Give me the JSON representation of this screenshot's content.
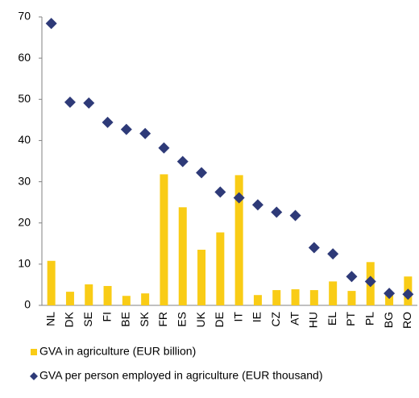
{
  "chart_data": {
    "type": "bar",
    "categories": [
      "NL",
      "DK",
      "SE",
      "FI",
      "BE",
      "SK",
      "FR",
      "ES",
      "UK",
      "DE",
      "IT",
      "IE",
      "CZ",
      "AT",
      "HU",
      "EL",
      "PT",
      "PL",
      "BG",
      "RO"
    ],
    "series": [
      {
        "name": "GVA in agriculture (EUR billion)",
        "type": "bar",
        "color": "#f9cc16",
        "values": [
          10.8,
          3.3,
          5.1,
          4.7,
          2.3,
          2.9,
          31.8,
          23.8,
          13.5,
          17.7,
          31.6,
          2.5,
          3.7,
          3.9,
          3.7,
          5.8,
          3.5,
          10.5,
          2.5,
          7.0
        ]
      },
      {
        "name": "GVA per person employed in agriculture (EUR thousand)",
        "type": "scatter",
        "marker": "diamond",
        "color": "#2e3a78",
        "values": [
          68.4,
          49.3,
          49.1,
          44.4,
          42.7,
          41.7,
          38.2,
          34.9,
          32.2,
          27.5,
          26.1,
          24.4,
          22.6,
          21.8,
          14.0,
          12.5,
          7.0,
          5.8,
          2.9,
          2.7
        ]
      }
    ],
    "ylim": [
      0,
      70
    ],
    "yticks": [
      0,
      10,
      20,
      30,
      40,
      50,
      60,
      70
    ],
    "grid": false
  }
}
